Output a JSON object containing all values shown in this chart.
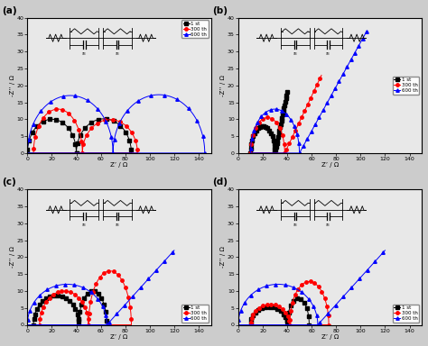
{
  "background_color": "#cccccc",
  "panel_bg": "#e8e8e8",
  "subplots": [
    "(a)",
    "(b)",
    "(c)",
    "(d)"
  ],
  "colors": [
    "black",
    "red",
    "blue"
  ],
  "markers": [
    "s",
    "o",
    "^"
  ],
  "legend_labels": [
    "1 st",
    "300 th",
    "600 th"
  ],
  "xlabel": "Z’ / Ω",
  "ylabel": "-Z’’ / Ω",
  "markersize": 2.5,
  "linewidth": 0.7
}
